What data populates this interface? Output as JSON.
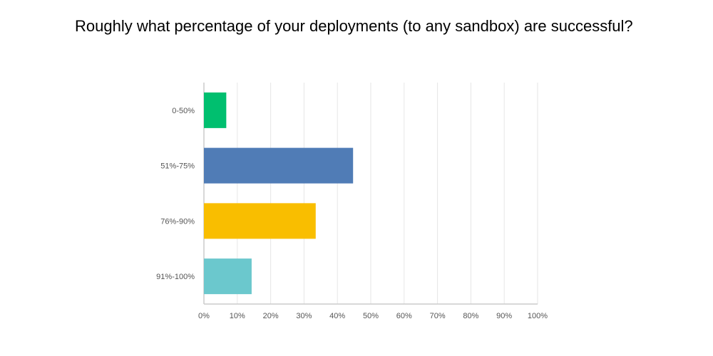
{
  "chart_data": {
    "type": "bar",
    "orientation": "horizontal",
    "title": "Roughly what percentage of your deployments (to any sandbox) are successful?",
    "categories": [
      "0-50%",
      "51%-75%",
      "76%-90%",
      "91%-100%"
    ],
    "values": [
      6.7,
      44.7,
      33.5,
      14.3
    ],
    "colors": [
      "#00bf6f",
      "#507cb6",
      "#f9be00",
      "#6bc8cd"
    ],
    "xlabel": "",
    "ylabel": "",
    "xlim": [
      0,
      100
    ],
    "x_ticks": [
      "0%",
      "10%",
      "20%",
      "30%",
      "40%",
      "50%",
      "60%",
      "70%",
      "80%",
      "90%",
      "100%"
    ],
    "grid": true,
    "units": "percent"
  }
}
